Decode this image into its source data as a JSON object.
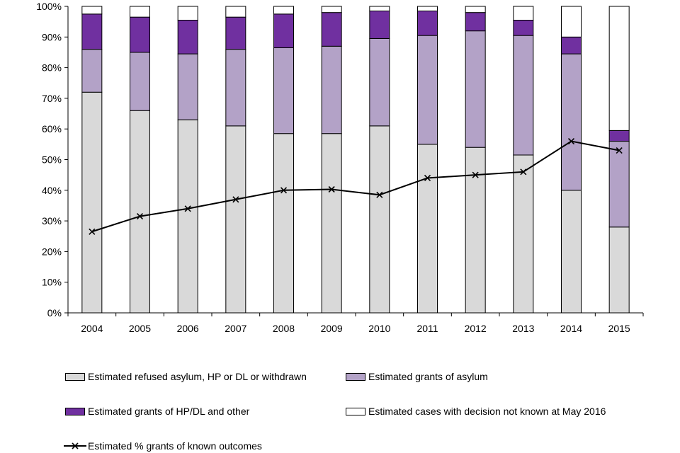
{
  "chart_data": {
    "type": "bar",
    "stacked": true,
    "categories": [
      "2004",
      "2005",
      "2006",
      "2007",
      "2008",
      "2009",
      "2010",
      "2011",
      "2012",
      "2013",
      "2014",
      "2015"
    ],
    "series": [
      {
        "name": "Estimated refused asylum, HP or DL or withdrawn",
        "color": "#d9d9d9",
        "values": [
          72,
          66,
          63,
          61,
          58.5,
          58.5,
          61,
          55,
          54,
          51.5,
          40,
          28
        ]
      },
      {
        "name": "Estimated grants of asylum",
        "color": "#b3a2c7",
        "values": [
          14,
          19,
          21.5,
          25,
          28,
          28.5,
          28.5,
          35.5,
          38,
          39,
          44.5,
          28
        ]
      },
      {
        "name": "Estimated grants of HP/DL and other",
        "color": "#7030a0",
        "values": [
          11.5,
          11.5,
          11,
          10.5,
          11,
          11,
          9,
          8,
          6,
          5,
          5.5,
          3.5
        ]
      },
      {
        "name": "Estimated cases with decision not known at May 2016",
        "color": "#ffffff",
        "values": [
          2.5,
          3.5,
          4.5,
          3.5,
          2.5,
          2,
          1.5,
          1.5,
          2,
          4.5,
          10,
          40.5
        ]
      }
    ],
    "line": {
      "name": "Estimated % grants of known outcomes",
      "color": "#000000",
      "values": [
        26.5,
        31.5,
        34,
        37,
        40,
        40.3,
        38.5,
        44,
        45,
        46,
        56,
        53
      ]
    },
    "yticks": [
      "0%",
      "10%",
      "20%",
      "30%",
      "40%",
      "50%",
      "60%",
      "70%",
      "80%",
      "90%",
      "100%"
    ],
    "ylim": [
      0,
      100
    ],
    "title": "",
    "xlabel": "",
    "ylabel": "",
    "legend_position": "bottom"
  }
}
